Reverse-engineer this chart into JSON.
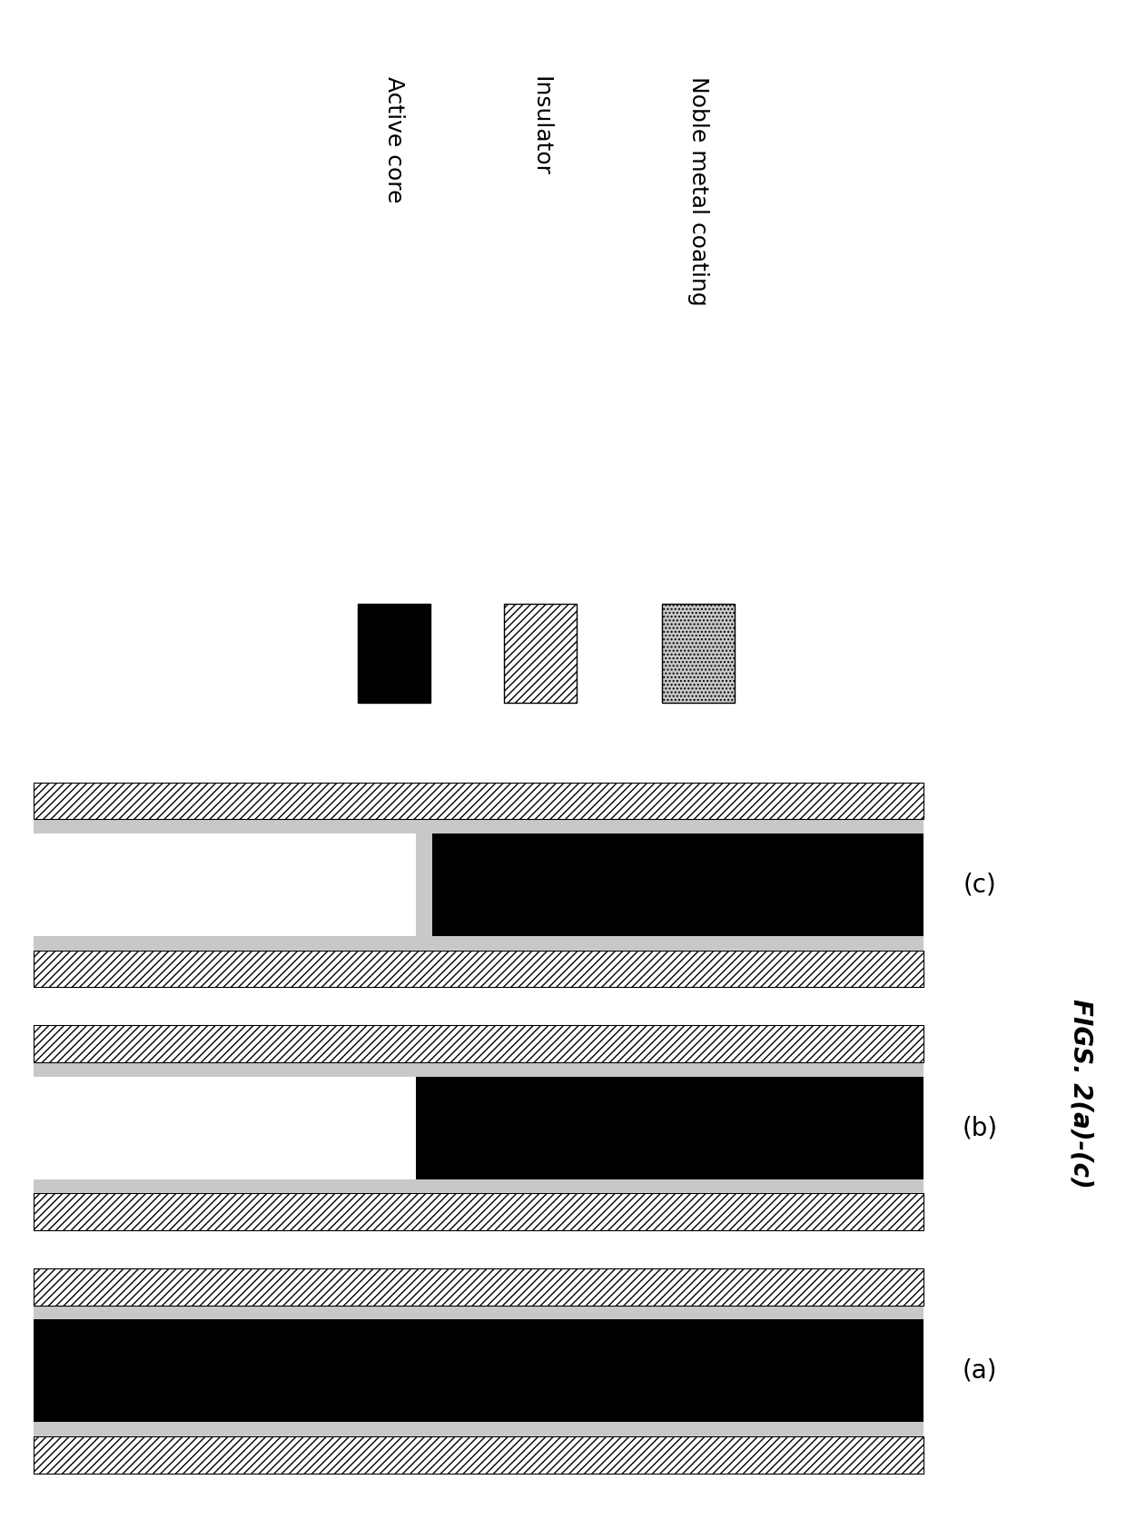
{
  "figure_width": 12.4,
  "figure_height": 16.73,
  "bg_color": "#ffffff",
  "legend_labels": [
    "Active core",
    "Insulator",
    "Noble metal coating"
  ],
  "caption": "FIGS. 2(a)-(c)",
  "panel_labels": [
    "(a)",
    "(b)",
    "(c)"
  ],
  "active_color": "#000000",
  "noble_color": "#c8c8c8",
  "insulator_fc": "#ffffff",
  "insulator_hatch": "////",
  "noble_hatch": "....",
  "legend_fontsize": 18,
  "panel_label_fontsize": 20,
  "caption_fontsize": 20,
  "panels": [
    {
      "type": "a",
      "label": "(a)"
    },
    {
      "type": "b",
      "label": "(b)"
    },
    {
      "type": "c",
      "label": "(c)"
    }
  ]
}
